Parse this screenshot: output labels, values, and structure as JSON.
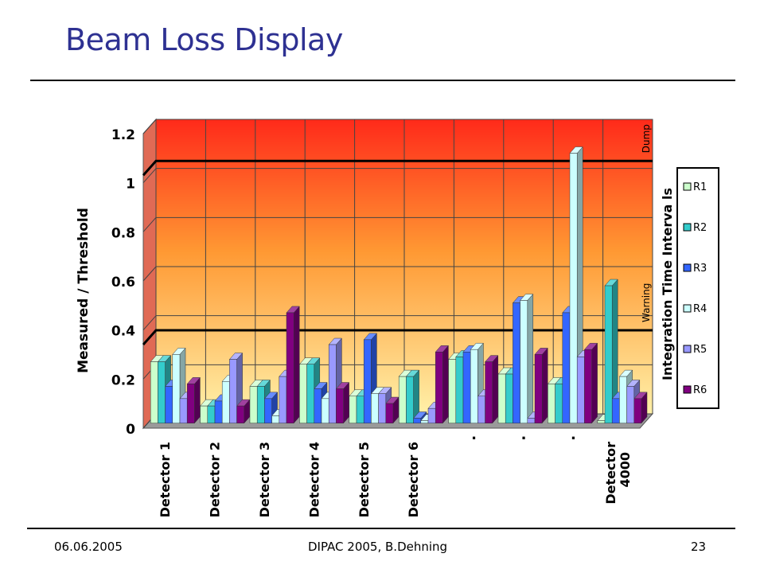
{
  "slide": {
    "title": "Beam Loss Display",
    "footer_date": "06.06.2005",
    "footer_event": "DIPAC 2005, B.Dehning",
    "footer_page": "23"
  },
  "chart_data": {
    "type": "bar",
    "title": "",
    "ylabel": "Measured / Threshold",
    "ylim": [
      0,
      1.2
    ],
    "yticks": [
      "0",
      "0.2",
      "0.4",
      "0.6",
      "0.8",
      "1",
      "1.2"
    ],
    "categories": [
      "Detector 1",
      "Detector 2",
      "Detector 3",
      "Detector 4",
      "Detector 5",
      "Detector 6",
      ".",
      ".",
      ".",
      "Detector 4000"
    ],
    "legend_title": "Integration Time Interva ls",
    "legend_position": "right",
    "series": [
      {
        "name": "R1",
        "color": "#ccffcc",
        "values": [
          0.25,
          0.07,
          0.15,
          0.24,
          0.11,
          0.19,
          0.26,
          0.2,
          0.16,
          0.01
        ]
      },
      {
        "name": "R2",
        "color": "#33cccc",
        "values": [
          0.25,
          0.07,
          0.15,
          0.24,
          0.11,
          0.19,
          0.27,
          0.2,
          0.16,
          0.56
        ]
      },
      {
        "name": "R3",
        "color": "#3366ff",
        "values": [
          0.15,
          0.09,
          0.1,
          0.14,
          0.34,
          0.02,
          0.29,
          0.49,
          0.45,
          0.1
        ]
      },
      {
        "name": "R4",
        "color": "#ccffff",
        "values": [
          0.28,
          0.17,
          0.03,
          0.1,
          0.12,
          0.01,
          0.3,
          0.5,
          1.1,
          0.19
        ]
      },
      {
        "name": "R5",
        "color": "#9999ff",
        "values": [
          0.1,
          0.26,
          0.19,
          0.32,
          0.12,
          0.06,
          0.11,
          0.02,
          0.27,
          0.15
        ]
      },
      {
        "name": "R6",
        "color": "#800080",
        "values": [
          0.16,
          0.07,
          0.45,
          0.14,
          0.08,
          0.29,
          0.25,
          0.28,
          0.3,
          0.1
        ]
      }
    ],
    "threshold_lines": [
      {
        "label": "Dump",
        "value": 1.05
      },
      {
        "label": "Warning",
        "value": 0.36
      }
    ],
    "grid": true,
    "background_gradient": [
      "#ff2a1a",
      "#ff9933",
      "#fff0a8"
    ]
  }
}
